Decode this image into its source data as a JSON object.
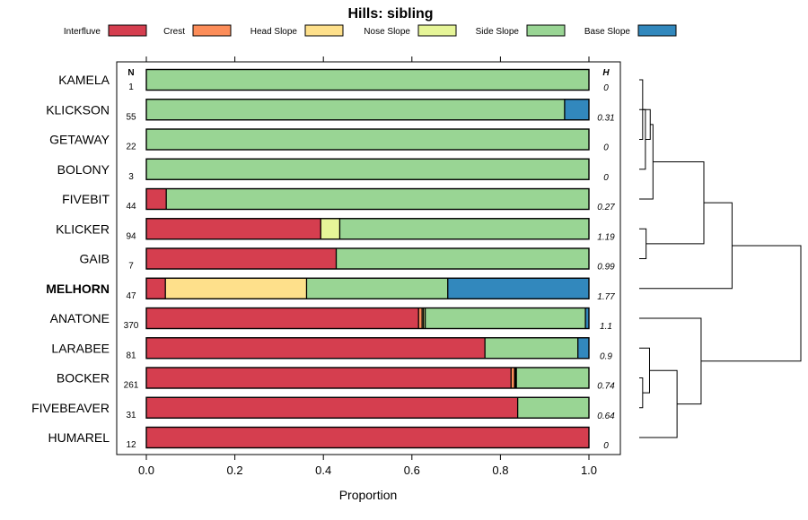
{
  "chart_data": {
    "type": "stacked-bar",
    "title": "Hills: sibling",
    "xlabel": "Proportion",
    "xlim": [
      0,
      1
    ],
    "x_ticks": [
      "0.0",
      "0.2",
      "0.4",
      "0.6",
      "0.8",
      "1.0"
    ],
    "n_header": "N",
    "h_header": "H",
    "legend_position": "top",
    "classes": [
      {
        "name": "Interfluve",
        "color": "#d53e4f"
      },
      {
        "name": "Crest",
        "color": "#fc8d59"
      },
      {
        "name": "Head Slope",
        "color": "#fee08b"
      },
      {
        "name": "Nose Slope",
        "color": "#e6f598"
      },
      {
        "name": "Side Slope",
        "color": "#99d594"
      },
      {
        "name": "Base Slope",
        "color": "#3288bd"
      }
    ],
    "rows": [
      {
        "label": "KAMELA",
        "n": "1",
        "h": "0",
        "bold": false,
        "values": [
          0,
          0,
          0,
          0,
          1.0,
          0
        ]
      },
      {
        "label": "KLICKSON",
        "n": "55",
        "h": "0.31",
        "bold": false,
        "values": [
          0,
          0,
          0,
          0,
          0.945,
          0.055
        ]
      },
      {
        "label": "GETAWAY",
        "n": "22",
        "h": "0",
        "bold": false,
        "values": [
          0,
          0,
          0,
          0,
          1.0,
          0
        ]
      },
      {
        "label": "BOLONY",
        "n": "3",
        "h": "0",
        "bold": false,
        "values": [
          0,
          0,
          0,
          0,
          1.0,
          0
        ]
      },
      {
        "label": "FIVEBIT",
        "n": "44",
        "h": "0.27",
        "bold": false,
        "values": [
          0.045,
          0,
          0,
          0,
          0.955,
          0
        ]
      },
      {
        "label": "KLICKER",
        "n": "94",
        "h": "1.19",
        "bold": false,
        "values": [
          0.394,
          0,
          0,
          0.043,
          0.563,
          0
        ]
      },
      {
        "label": "GAIB",
        "n": "7",
        "h": "0.99",
        "bold": false,
        "values": [
          0.429,
          0,
          0,
          0,
          0.571,
          0
        ]
      },
      {
        "label": "MELHORN",
        "n": "47",
        "h": "1.77",
        "bold": true,
        "values": [
          0.043,
          0,
          0.319,
          0,
          0.319,
          0.319
        ]
      },
      {
        "label": "ANATONE",
        "n": "370",
        "h": "1.1",
        "bold": false,
        "values": [
          0.615,
          0.008,
          0.003,
          0.004,
          0.362,
          0.008
        ]
      },
      {
        "label": "LARABEE",
        "n": "81",
        "h": "0.9",
        "bold": false,
        "values": [
          0.765,
          0,
          0,
          0,
          0.21,
          0.025
        ]
      },
      {
        "label": "BOCKER",
        "n": "261",
        "h": "0.74",
        "bold": false,
        "values": [
          0.824,
          0.008,
          0.002,
          0.002,
          0.164,
          0
        ]
      },
      {
        "label": "FIVEBEAVER",
        "n": "31",
        "h": "0.64",
        "bold": false,
        "values": [
          0.839,
          0,
          0,
          0,
          0.161,
          0
        ]
      },
      {
        "label": "HUMAREL",
        "n": "12",
        "h": "0",
        "bold": false,
        "values": [
          1.0,
          0,
          0,
          0,
          0,
          0
        ]
      }
    ],
    "dendrogram": {
      "type": "hierarchical-clustering",
      "merges": [
        {
          "a": 0,
          "b": 2,
          "h": 0.05
        },
        {
          "a": -1,
          "b": 3,
          "h": 0.09
        },
        {
          "a": -2,
          "b": 1,
          "h": 0.16
        },
        {
          "a": -3,
          "b": 4,
          "h": 0.2
        },
        {
          "a": 10,
          "b": 11,
          "h": 0.05
        },
        {
          "a": -5,
          "b": 9,
          "h": 0.15
        },
        {
          "a": -6,
          "b": 12,
          "h": 0.55
        },
        {
          "a": 5,
          "b": 6,
          "h": 0.1
        },
        {
          "a": -4,
          "b": -8,
          "h": 0.94
        },
        {
          "a": -9,
          "b": 7,
          "h": 1.35
        },
        {
          "a": 8,
          "b": -7,
          "h": 0.9
        },
        {
          "a": -10,
          "b": -11,
          "h": 2.35
        }
      ]
    }
  }
}
